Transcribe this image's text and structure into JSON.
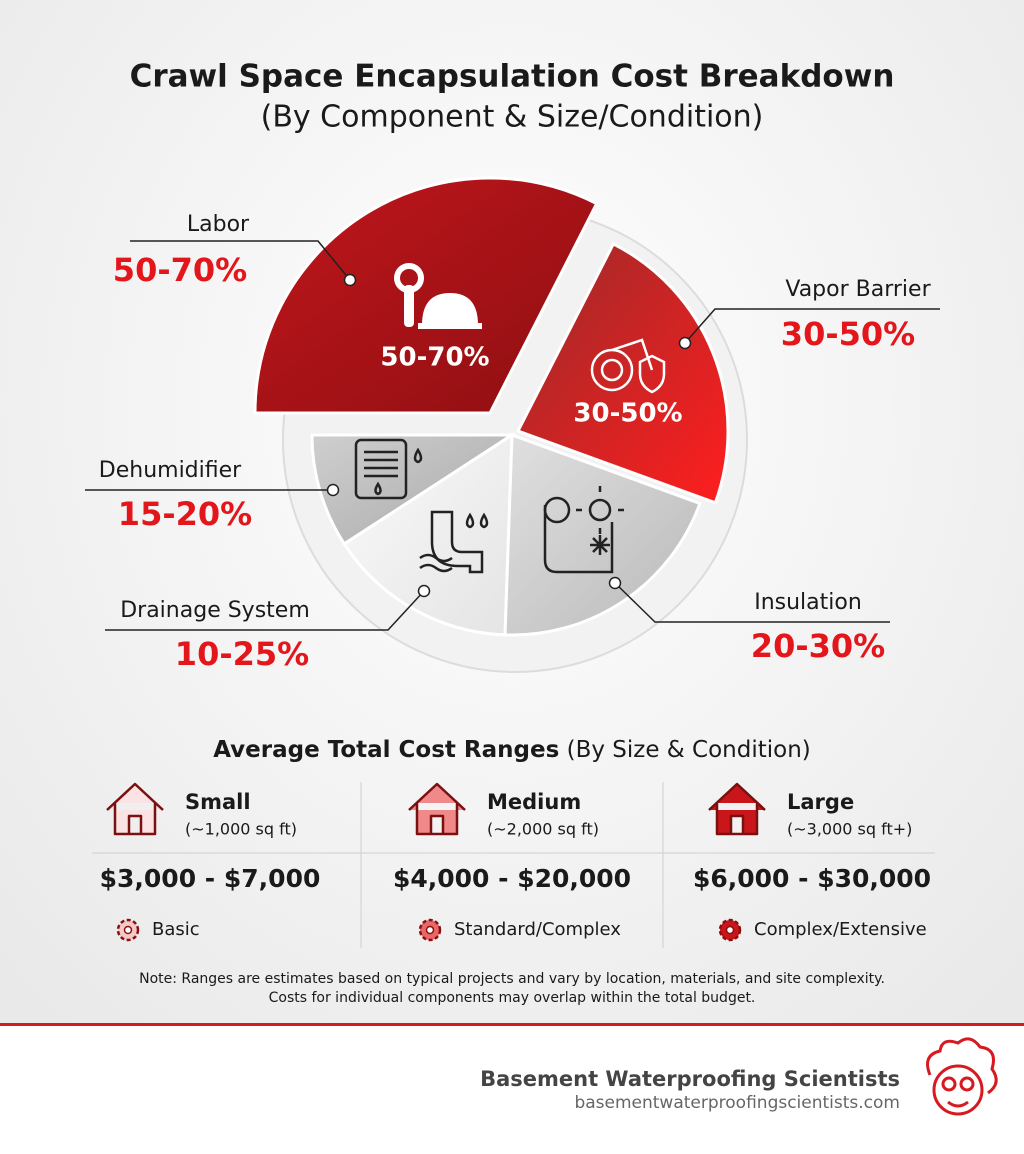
{
  "header": {
    "title": "Crawl Space Encapsulation Cost Breakdown",
    "subtitle": "(By Component & Size/Condition)"
  },
  "components": [
    {
      "name": "Labor",
      "range": "50-70%"
    },
    {
      "name": "Vapor Barrier",
      "range": "30-50%"
    },
    {
      "name": "Insulation",
      "range": "20-30%"
    },
    {
      "name": "Drainage System",
      "range": "10-25%"
    },
    {
      "name": "Dehumidifier",
      "range": "15-20%"
    }
  ],
  "cost_ranges": {
    "title": "Average Total Cost Ranges",
    "subtitle": "(By Size & Condition)",
    "columns": [
      {
        "size": "Small",
        "area": "(~1,000 sq ft)",
        "price": "$3,000 - $7,000",
        "condition": "Basic"
      },
      {
        "size": "Medium",
        "area": "(~2,000 sq ft)",
        "price": "$4,000 - $20,000",
        "condition": "Standard/Complex"
      },
      {
        "size": "Large",
        "area": "(~3,000 sq ft+)",
        "price": "$6,000 - $30,000",
        "condition": "Complex/Extensive"
      }
    ]
  },
  "note": [
    "Note: Ranges are estimates based on typical projects and vary by location, materials, and site complexity.",
    "Costs for individual components may overlap within the total budget."
  ],
  "footer": {
    "brand": "Basement Waterproofing Scientists",
    "url": "basementwaterproofingscientists.com"
  }
}
